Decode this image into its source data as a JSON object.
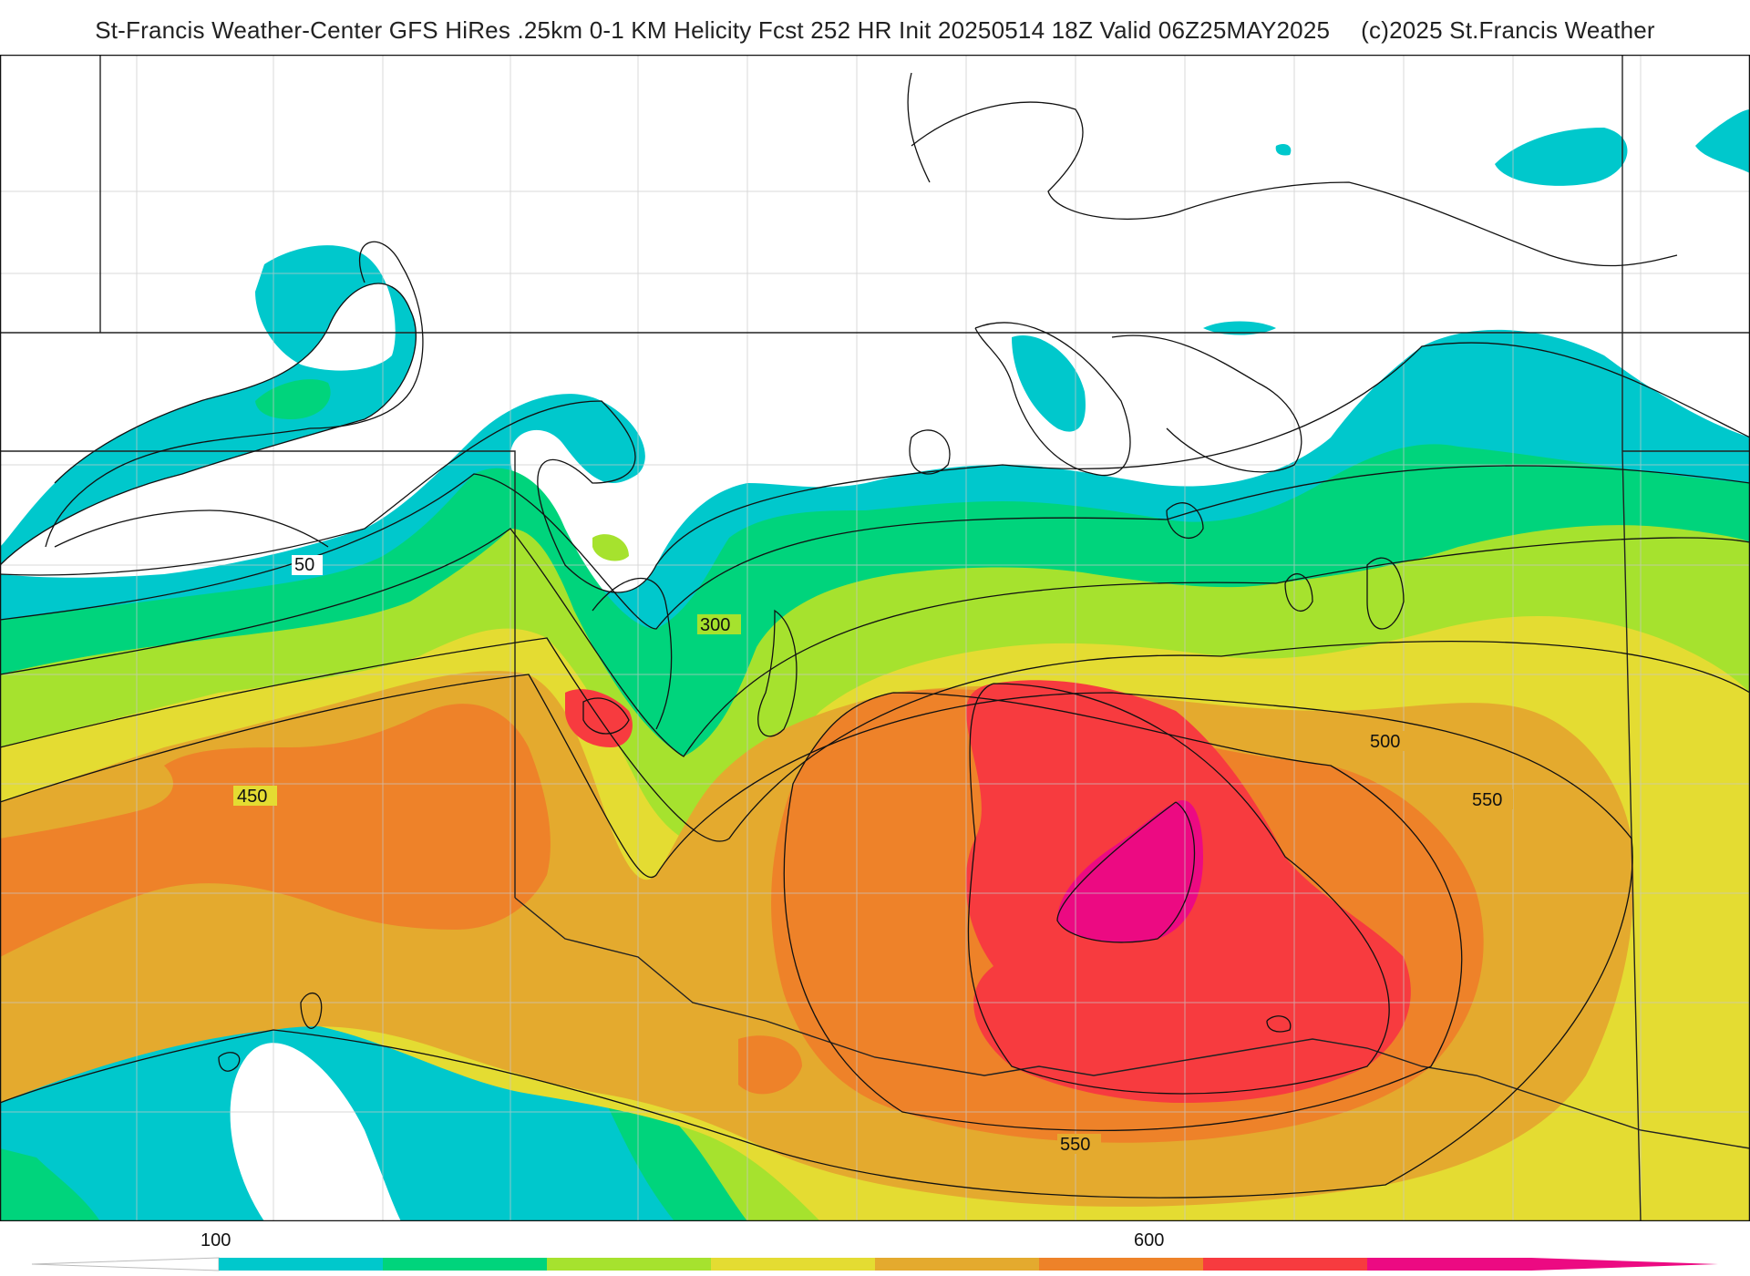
{
  "header": {
    "title": "St-Francis Weather-Center GFS HiRes .25km 0-1 KM Helicity Fcst 252 HR Init 20250514 18Z  Valid 06Z25MAY2025",
    "credit": "(c)2025 St.Francis Weather"
  },
  "map": {
    "parameter": "0-1 KM Helicity",
    "contour_labels": [
      "50",
      "300",
      "450",
      "500",
      "550",
      "550"
    ]
  },
  "colorbar": {
    "tick_labels": [
      "100",
      "600"
    ],
    "colors": [
      "#00c8cc",
      "#00d47c",
      "#a6e22e",
      "#e4dc32",
      "#e4aa2e",
      "#ee8229",
      "#f73b3f",
      "#ec0a82"
    ]
  },
  "chart_data": {
    "type": "heatmap",
    "title": "St-Francis Weather-Center GFS HiRes .25km 0-1 KM Helicity Fcst 252 HR Init 20250514 18Z  Valid 06Z25MAY2025",
    "colorbar_ticks": [
      100,
      600
    ],
    "contour_values_labeled": [
      50,
      300,
      450,
      500,
      550,
      550
    ],
    "fill_bands": [
      {
        "from": 100,
        "to": 200,
        "color": "#00c8cc"
      },
      {
        "from": 200,
        "to": 300,
        "color": "#00d47c"
      },
      {
        "from": 300,
        "to": 400,
        "color": "#a6e22e"
      },
      {
        "from": 400,
        "to": 500,
        "color": "#e4dc32"
      },
      {
        "from": 500,
        "to": 550,
        "color": "#e4aa2e"
      },
      {
        "from": 550,
        "to": 600,
        "color": "#ee8229"
      },
      {
        "from": 600,
        "to": 650,
        "color": "#f73b3f"
      },
      {
        "from": 650,
        "to": 700,
        "color": "#ec0a82"
      }
    ],
    "features": [
      {
        "name": "maximum",
        "value_band": "650-700",
        "location": "center-right"
      },
      {
        "name": "secondary maximum",
        "value_band": "600-650",
        "location": "center-left"
      },
      {
        "name": "minimum",
        "value_band": "below 100",
        "location": "north and southwest"
      }
    ]
  }
}
